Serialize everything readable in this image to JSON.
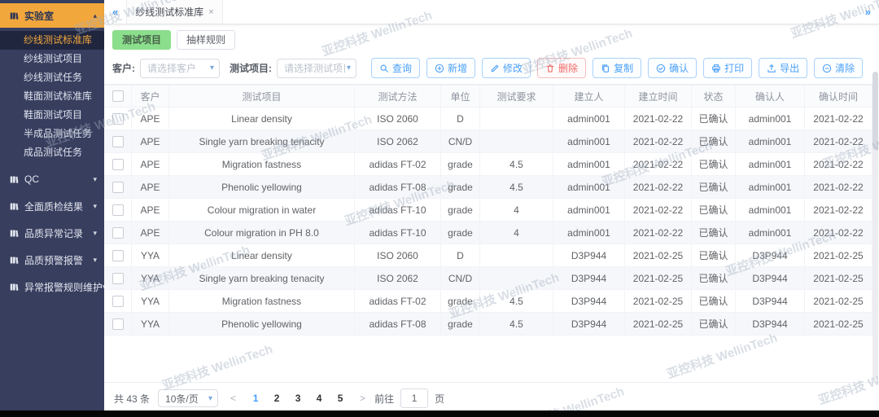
{
  "watermark": "亚控科技 WellinTech",
  "colors": {
    "accent": "#409EFF",
    "danger": "#F56C6C",
    "subtab_active_green": "#8BDE8B",
    "sidebar_bg": "#373E5E",
    "sidebar_active_amber": "#F2A73D",
    "sidebar_active_sub_bg": "#20263E",
    "bottom_bar": "#060606"
  },
  "ui": {
    "collapse": "«",
    "expand": "»",
    "tab_close": "×",
    "caret_up": "▴",
    "caret_down": "▾",
    "chevron_down": "▾",
    "prev": "<",
    "next": ">"
  },
  "sidebar": {
    "sections": [
      {
        "key": "laboratory",
        "label": "实验室",
        "expanded": true,
        "active": true,
        "children": [
          {
            "label": "纱线测试标准库",
            "active": true
          },
          {
            "label": "纱线测试项目"
          },
          {
            "label": "纱线测试任务"
          },
          {
            "label": "鞋面测试标准库"
          },
          {
            "label": "鞋面测试项目"
          },
          {
            "label": "半成品测试任务"
          },
          {
            "label": "成品测试任务"
          }
        ]
      },
      {
        "key": "qc",
        "label": "QC",
        "expanded": false
      },
      {
        "key": "full-quality-results",
        "label": "全面质检结果",
        "expanded": false
      },
      {
        "key": "quality-abnormal-records",
        "label": "品质异常记录",
        "expanded": false
      },
      {
        "key": "quality-warning-alerts",
        "label": "品质预警报警",
        "expanded": false
      },
      {
        "key": "abnormal-alert-rules",
        "label": "异常报警规则维护",
        "expanded": false
      }
    ]
  },
  "tabbar": {
    "tabs": [
      {
        "label": "纱线测试标准库",
        "active": true
      }
    ]
  },
  "subtabs": [
    {
      "key": "test-items",
      "label": "测试项目",
      "active": true
    },
    {
      "key": "sampling-rules",
      "label": "抽样规则",
      "active": false
    }
  ],
  "filters": {
    "customer_label": "客户:",
    "customer_placeholder": "请选择客户",
    "item_label": "测试项目:",
    "item_placeholder": "请选择测试项目"
  },
  "toolbar": {
    "buttons": [
      {
        "key": "query",
        "label": "查询",
        "icon": "search",
        "type": "primary"
      },
      {
        "key": "add",
        "label": "新增",
        "icon": "plus",
        "type": "primary"
      },
      {
        "key": "modify",
        "label": "修改",
        "icon": "edit",
        "type": "primary"
      },
      {
        "key": "delete",
        "label": "删除",
        "icon": "trash",
        "type": "danger"
      },
      {
        "key": "copy",
        "label": "复制",
        "icon": "copy",
        "type": "primary"
      },
      {
        "key": "confirm",
        "label": "确认",
        "icon": "check",
        "type": "primary"
      },
      {
        "key": "print",
        "label": "打印",
        "icon": "printer",
        "type": "primary"
      },
      {
        "key": "export",
        "label": "导出",
        "icon": "export",
        "type": "primary"
      },
      {
        "key": "clear",
        "label": "清除",
        "icon": "minus",
        "type": "primary"
      }
    ]
  },
  "table": {
    "columns": [
      "客户",
      "测试项目",
      "测试方法",
      "单位",
      "测试要求",
      "建立人",
      "建立时间",
      "状态",
      "确认人",
      "确认时间"
    ],
    "rows": [
      [
        "APE",
        "Linear density",
        "ISO 2060",
        "D",
        "",
        "admin001",
        "2021-02-22",
        "已确认",
        "admin001",
        "2021-02-22"
      ],
      [
        "APE",
        "Single yarn breaking tenacity",
        "ISO 2062",
        "CN/D",
        "",
        "admin001",
        "2021-02-22",
        "已确认",
        "admin001",
        "2021-02-22"
      ],
      [
        "APE",
        "Migration fastness",
        "adidas FT-02",
        "grade",
        "4.5",
        "admin001",
        "2021-02-22",
        "已确认",
        "admin001",
        "2021-02-22"
      ],
      [
        "APE",
        "Phenolic yellowing",
        "adidas FT-08",
        "grade",
        "4.5",
        "admin001",
        "2021-02-22",
        "已确认",
        "admin001",
        "2021-02-22"
      ],
      [
        "APE",
        "Colour migration in water",
        "adidas FT-10",
        "grade",
        "4",
        "admin001",
        "2021-02-22",
        "已确认",
        "admin001",
        "2021-02-22"
      ],
      [
        "APE",
        "Colour migration in PH 8.0",
        "adidas FT-10",
        "grade",
        "4",
        "admin001",
        "2021-02-22",
        "已确认",
        "admin001",
        "2021-02-22"
      ],
      [
        "YYA",
        "Linear density",
        "ISO 2060",
        "D",
        "",
        "D3P944",
        "2021-02-25",
        "已确认",
        "D3P944",
        "2021-02-25"
      ],
      [
        "YYA",
        "Single yarn breaking tenacity",
        "ISO 2062",
        "CN/D",
        "",
        "D3P944",
        "2021-02-25",
        "已确认",
        "D3P944",
        "2021-02-25"
      ],
      [
        "YYA",
        "Migration fastness",
        "adidas FT-02",
        "grade",
        "4.5",
        "D3P944",
        "2021-02-25",
        "已确认",
        "D3P944",
        "2021-02-25"
      ],
      [
        "YYA",
        "Phenolic yellowing",
        "adidas FT-08",
        "grade",
        "4.5",
        "D3P944",
        "2021-02-25",
        "已确认",
        "D3P944",
        "2021-02-25"
      ]
    ]
  },
  "pagination": {
    "total": "共 43 条",
    "page_size": "10条/页",
    "pages": [
      "1",
      "2",
      "3",
      "4",
      "5"
    ],
    "active_page": "1",
    "goto_label": "前往",
    "goto_value": "1",
    "goto_suffix": "页"
  }
}
